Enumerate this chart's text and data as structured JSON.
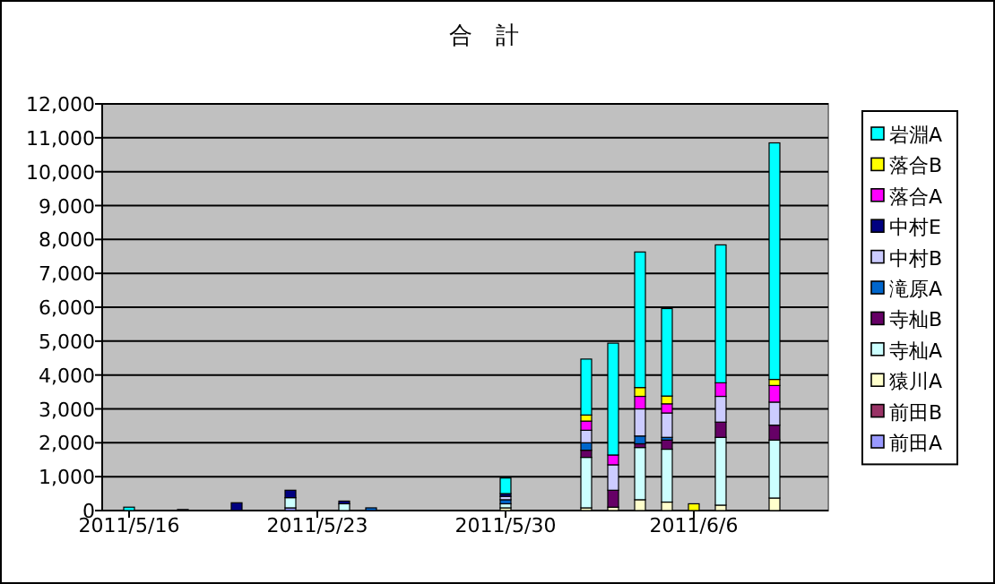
{
  "chart_data": {
    "type": "bar",
    "title": "合　計",
    "stacked": true,
    "x": [
      "2011-05-16",
      "2011-05-18",
      "2011-05-20",
      "2011-05-22",
      "2011-05-24",
      "2011-05-25",
      "2011-05-30",
      "2011-06-02",
      "2011-06-03",
      "2011-06-04",
      "2011-06-05",
      "2011-06-06",
      "2011-06-07",
      "2011-06-09"
    ],
    "xlim": [
      "2011-05-15",
      "2011-06-11"
    ],
    "xticks": [
      {
        "value": "2011-05-16",
        "label": "2011/5/16"
      },
      {
        "value": "2011-05-23",
        "label": "2011/5/23"
      },
      {
        "value": "2011-05-30",
        "label": "2011/5/30"
      },
      {
        "value": "2011-06-06",
        "label": "2011/6/6"
      }
    ],
    "ylim": [
      0,
      12000
    ],
    "yticks": [
      0,
      {
        "value": 1000,
        "label": "1,000"
      },
      {
        "value": 2000,
        "label": "2,000"
      },
      {
        "value": 3000,
        "label": "3,000"
      },
      {
        "value": 4000,
        "label": "4,000"
      },
      {
        "value": 5000,
        "label": "5,000"
      },
      {
        "value": 6000,
        "label": "6,000"
      },
      {
        "value": 7000,
        "label": "7,000"
      },
      {
        "value": 8000,
        "label": "8,000"
      },
      {
        "value": 9000,
        "label": "9,000"
      },
      {
        "value": 10000,
        "label": "10,000"
      },
      {
        "value": 11000,
        "label": "11,000"
      },
      {
        "value": 12000,
        "label": "12,000"
      }
    ],
    "grid": "y",
    "legend": "right",
    "series": [
      {
        "name": "前田A",
        "color": "#9999ff",
        "values": [
          null,
          null,
          null,
          80,
          null,
          null,
          null,
          null,
          null,
          null,
          null,
          null,
          null,
          null
        ]
      },
      {
        "name": "前田B",
        "color": "#993366",
        "values": [
          null,
          null,
          null,
          null,
          null,
          null,
          null,
          null,
          null,
          null,
          null,
          null,
          null,
          null
        ]
      },
      {
        "name": "猿川A",
        "color": "#ffffcc",
        "values": [
          null,
          null,
          null,
          null,
          null,
          null,
          80,
          80,
          100,
          320,
          250,
          null,
          160,
          370
        ]
      },
      {
        "name": "寺杣A",
        "color": "#ccffff",
        "values": [
          null,
          null,
          null,
          300,
          200,
          null,
          120,
          1490,
          null,
          1540,
          1560,
          null,
          2000,
          1710
        ]
      },
      {
        "name": "寺杣B",
        "color": "#660066",
        "values": [
          null,
          null,
          null,
          null,
          null,
          null,
          null,
          210,
          500,
          110,
          270,
          null,
          450,
          440
        ]
      },
      {
        "name": "滝原A",
        "color": "#0066cc",
        "values": [
          null,
          null,
          null,
          null,
          null,
          80,
          120,
          220,
          null,
          230,
          80,
          null,
          null,
          null
        ]
      },
      {
        "name": "中村B",
        "color": "#ccccff",
        "values": [
          null,
          null,
          null,
          null,
          null,
          null,
          100,
          370,
          750,
          800,
          720,
          null,
          760,
          680
        ]
      },
      {
        "name": "中村E",
        "color": "#000080",
        "values": [
          null,
          30,
          230,
          220,
          80,
          null,
          80,
          null,
          null,
          null,
          null,
          null,
          null,
          null
        ]
      },
      {
        "name": "落合A",
        "color": "#ff00ff",
        "values": [
          null,
          null,
          null,
          null,
          null,
          null,
          null,
          270,
          290,
          370,
          270,
          null,
          400,
          490
        ]
      },
      {
        "name": "落合B",
        "color": "#ffff00",
        "values": [
          null,
          null,
          null,
          null,
          null,
          null,
          null,
          180,
          null,
          260,
          230,
          200,
          null,
          180
        ]
      },
      {
        "name": "岩淵A",
        "color": "#00ffff",
        "values": [
          100,
          null,
          null,
          null,
          null,
          null,
          460,
          1650,
          3300,
          4000,
          2580,
          null,
          4070,
          6980
        ]
      }
    ]
  }
}
